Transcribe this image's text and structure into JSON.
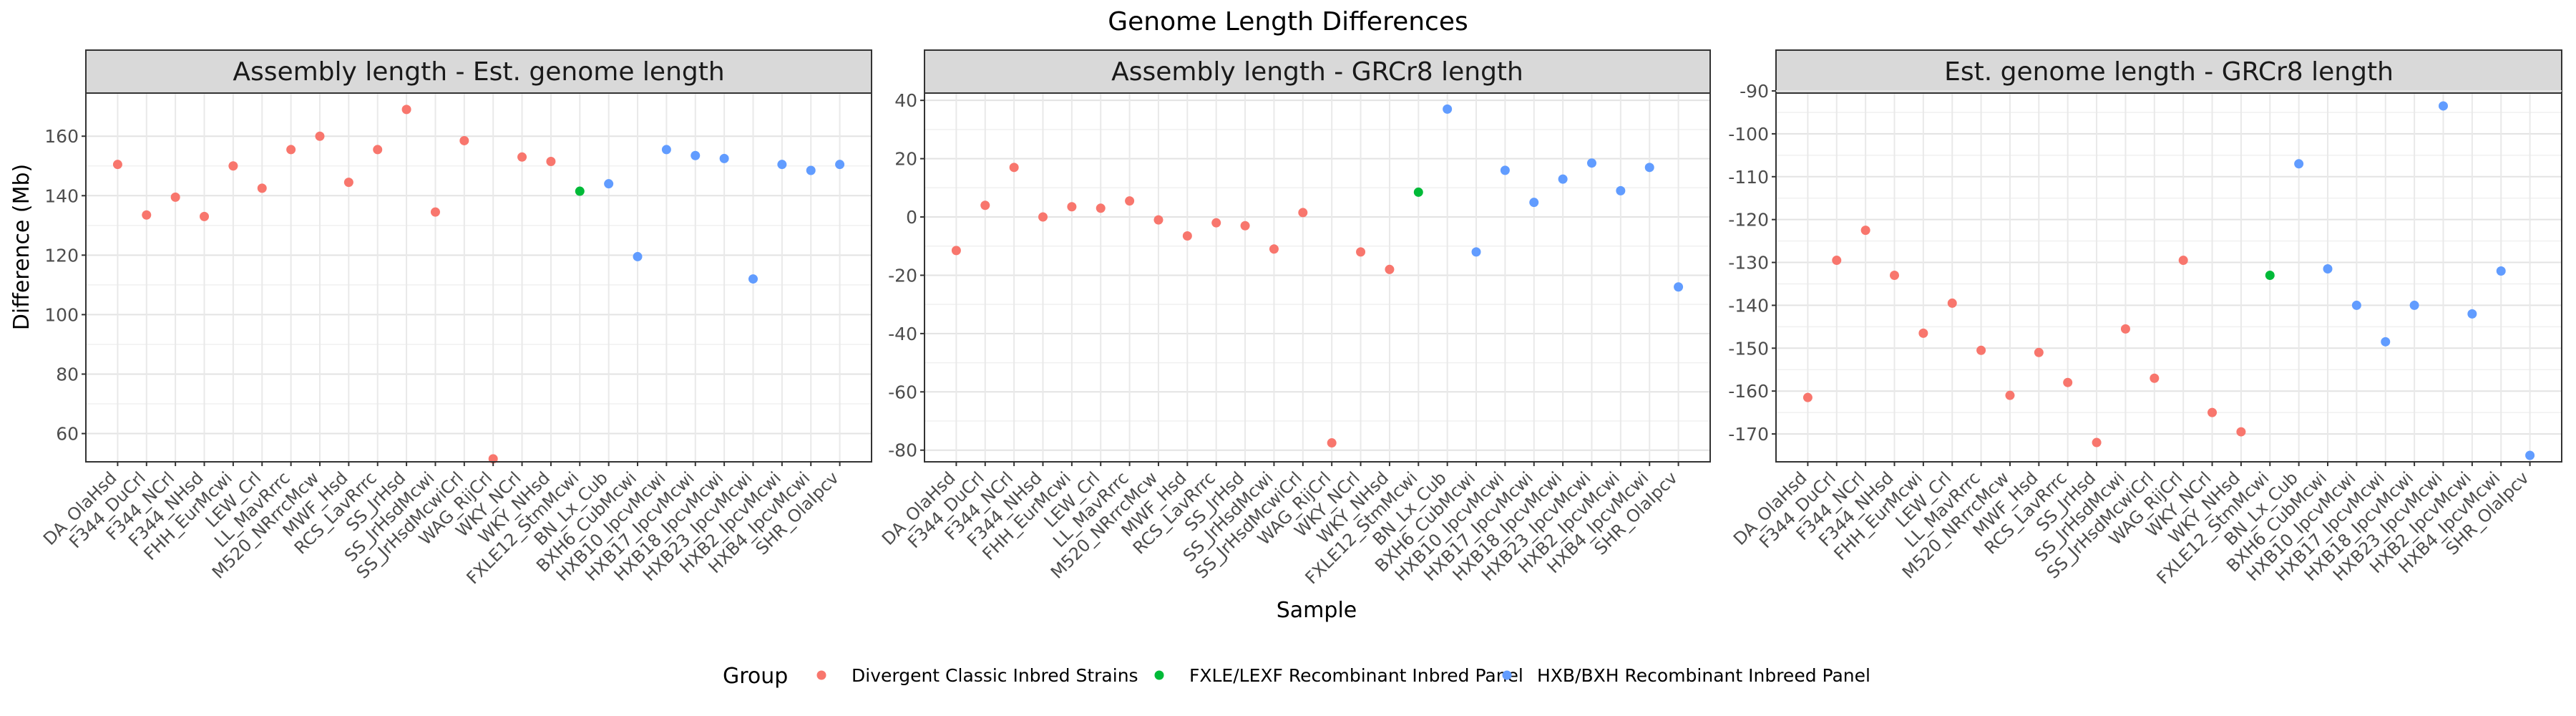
{
  "chart_data": {
    "type": "scatter",
    "title": "Genome Length Differences",
    "xlabel": "Sample",
    "ylabel": "Difference (Mb)",
    "legend": {
      "title": "Group",
      "position": "bottom",
      "entries": [
        {
          "name": "Divergent Classic Inbred Strains",
          "color": "#F8766D"
        },
        {
          "name": "FXLE/LEXF Recombinant Inbred Panel",
          "color": "#00BA38"
        },
        {
          "name": "HXB/BXH Recombinant Inbreed Panel",
          "color": "#619CFF"
        }
      ]
    },
    "grid": true,
    "categories": [
      "DA_OlaHsd",
      "F344_DuCrl",
      "F344_NCrl",
      "F344_NHsd",
      "FHH_EurMcwi",
      "LEW_Crl",
      "LL_MavRrrc",
      "M520_NRrrcMcw",
      "MWF_Hsd",
      "RCS_LavRrrc",
      "SS_JrHsd",
      "SS_JrHsdMcwi",
      "SS_JrHsdMcwiCrl",
      "WAG_RijCrl",
      "WKY_NCrl",
      "WKY_NHsd",
      "FXLE12_StmMcwi",
      "BN_Lx_Cub",
      "BXH6_CubMcwi",
      "HXB10_IpcvMcwi",
      "HXB17_IpcvMcwi",
      "HXB18_IpcvMcwi",
      "HXB23_IpcvMcwi",
      "HXB2_IpcvMcwi",
      "HXB4_IpcvMcwi",
      "SHR_OlaIpcv"
    ],
    "groups": [
      0,
      0,
      0,
      0,
      0,
      0,
      0,
      0,
      0,
      0,
      0,
      0,
      0,
      0,
      0,
      0,
      1,
      2,
      2,
      2,
      2,
      2,
      2,
      2,
      2,
      2
    ],
    "panels": [
      {
        "title": "Assembly length - Est. genome length",
        "ylim": [
          50.5,
          174.5
        ],
        "yticks": [
          60,
          80,
          100,
          120,
          140,
          160
        ],
        "values": [
          150.5,
          133.5,
          139.5,
          133,
          150,
          142.5,
          155.5,
          160,
          144.5,
          155.5,
          169,
          134.5,
          158.5,
          51.5,
          153,
          151.5,
          141.5,
          144,
          119.5,
          155.5,
          153.5,
          152.5,
          112,
          150.5,
          148.5,
          150.5
        ]
      },
      {
        "title": "Assembly length - GRCr8 length",
        "ylim": [
          -84,
          42.5
        ],
        "yticks": [
          -80,
          -60,
          -40,
          -20,
          0,
          20,
          40
        ],
        "values": [
          -11.5,
          4,
          17,
          0,
          3.5,
          3,
          5.5,
          -1,
          -6.5,
          -2,
          -3,
          -11,
          1.5,
          -77.5,
          -12,
          -18,
          8.5,
          37,
          -12,
          16,
          5,
          13,
          18.5,
          9,
          17,
          -24
        ]
      },
      {
        "title": "Est. genome length - GRCr8 length",
        "ylim": [
          -176.5,
          -90.5
        ],
        "yticks": [
          -170,
          -160,
          -150,
          -140,
          -130,
          -120,
          -110,
          -100,
          -90
        ],
        "values": [
          -161.5,
          -129.5,
          -122.5,
          -133,
          -146.5,
          -139.5,
          -150.5,
          -161,
          -151,
          -158,
          -172,
          -145.5,
          -157,
          -129.5,
          -165,
          -169.5,
          -133,
          -107,
          -131.5,
          -140,
          -148.5,
          -140,
          -93.5,
          -142,
          -132,
          -175
        ]
      }
    ]
  }
}
